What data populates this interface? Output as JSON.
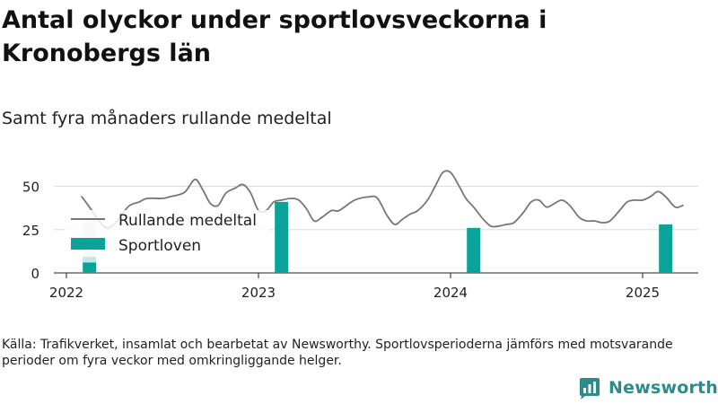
{
  "title": "Antal olyckor under sportlovsveckorna i Kronobergs län",
  "subtitle": "Samt fyra månaders rullande medeltal",
  "source": "Källa: Trafikverket, insamlat och bearbetat av Newsworthy. Sportlovsperioderna jämförs med motsvarande perioder om fyra veckor med omkringliggande helger.",
  "logo_text": "Newsworthy",
  "colors": {
    "line": "#777777",
    "bar": "#0aa39a",
    "grid": "#dddddd",
    "highlight": "#c6e9e7"
  },
  "chart_data": {
    "type": "bar+line",
    "ylim": [
      0,
      60
    ],
    "y_ticks": [
      0,
      25,
      50
    ],
    "x_ticks": [
      {
        "label": "2022",
        "x": 2022.0
      },
      {
        "label": "2023",
        "x": 2023.0
      },
      {
        "label": "2024",
        "x": 2024.0
      },
      {
        "label": "2025",
        "x": 2025.0
      }
    ],
    "legend": {
      "line": "Rullande medeltal",
      "bar": "Sportloven"
    },
    "series": [
      {
        "name": "Rullande medeltal",
        "type": "line",
        "points": [
          [
            2022.08,
            44
          ],
          [
            2022.12,
            38
          ],
          [
            2022.17,
            30
          ],
          [
            2022.21,
            26
          ],
          [
            2022.25,
            28
          ],
          [
            2022.29,
            34
          ],
          [
            2022.33,
            39
          ],
          [
            2022.38,
            41
          ],
          [
            2022.42,
            43
          ],
          [
            2022.5,
            43
          ],
          [
            2022.54,
            44
          ],
          [
            2022.58,
            45
          ],
          [
            2022.62,
            47
          ],
          [
            2022.67,
            54
          ],
          [
            2022.71,
            48
          ],
          [
            2022.75,
            40
          ],
          [
            2022.79,
            39
          ],
          [
            2022.83,
            46
          ],
          [
            2022.88,
            49
          ],
          [
            2022.92,
            51
          ],
          [
            2022.96,
            46
          ],
          [
            2023.0,
            36
          ],
          [
            2023.04,
            36
          ],
          [
            2023.08,
            41
          ],
          [
            2023.12,
            42
          ],
          [
            2023.17,
            43
          ],
          [
            2023.21,
            42
          ],
          [
            2023.25,
            37
          ],
          [
            2023.29,
            30
          ],
          [
            2023.33,
            32
          ],
          [
            2023.38,
            36
          ],
          [
            2023.42,
            36
          ],
          [
            2023.5,
            42
          ],
          [
            2023.58,
            44
          ],
          [
            2023.62,
            43
          ],
          [
            2023.67,
            33
          ],
          [
            2023.71,
            28
          ],
          [
            2023.75,
            31
          ],
          [
            2023.79,
            34
          ],
          [
            2023.83,
            36
          ],
          [
            2023.88,
            42
          ],
          [
            2023.92,
            50
          ],
          [
            2023.96,
            58
          ],
          [
            2024.0,
            58
          ],
          [
            2024.04,
            51
          ],
          [
            2024.08,
            43
          ],
          [
            2024.12,
            38
          ],
          [
            2024.17,
            31
          ],
          [
            2024.21,
            27
          ],
          [
            2024.25,
            27
          ],
          [
            2024.29,
            28
          ],
          [
            2024.33,
            29
          ],
          [
            2024.38,
            35
          ],
          [
            2024.42,
            41
          ],
          [
            2024.46,
            42
          ],
          [
            2024.5,
            38
          ],
          [
            2024.54,
            40
          ],
          [
            2024.58,
            42
          ],
          [
            2024.62,
            39
          ],
          [
            2024.67,
            32
          ],
          [
            2024.71,
            30
          ],
          [
            2024.75,
            30
          ],
          [
            2024.79,
            29
          ],
          [
            2024.83,
            30
          ],
          [
            2024.88,
            36
          ],
          [
            2024.92,
            41
          ],
          [
            2024.96,
            42
          ],
          [
            2025.0,
            42
          ],
          [
            2025.04,
            44
          ],
          [
            2025.08,
            47
          ],
          [
            2025.12,
            44
          ],
          [
            2025.17,
            38
          ],
          [
            2025.21,
            39
          ]
        ]
      },
      {
        "name": "Sportloven",
        "type": "bar",
        "bars": [
          {
            "x": 2022.12,
            "value": 6
          },
          {
            "x": 2023.12,
            "value": 41
          },
          {
            "x": 2024.12,
            "value": 26
          },
          {
            "x": 2025.12,
            "value": 28
          }
        ]
      }
    ]
  }
}
